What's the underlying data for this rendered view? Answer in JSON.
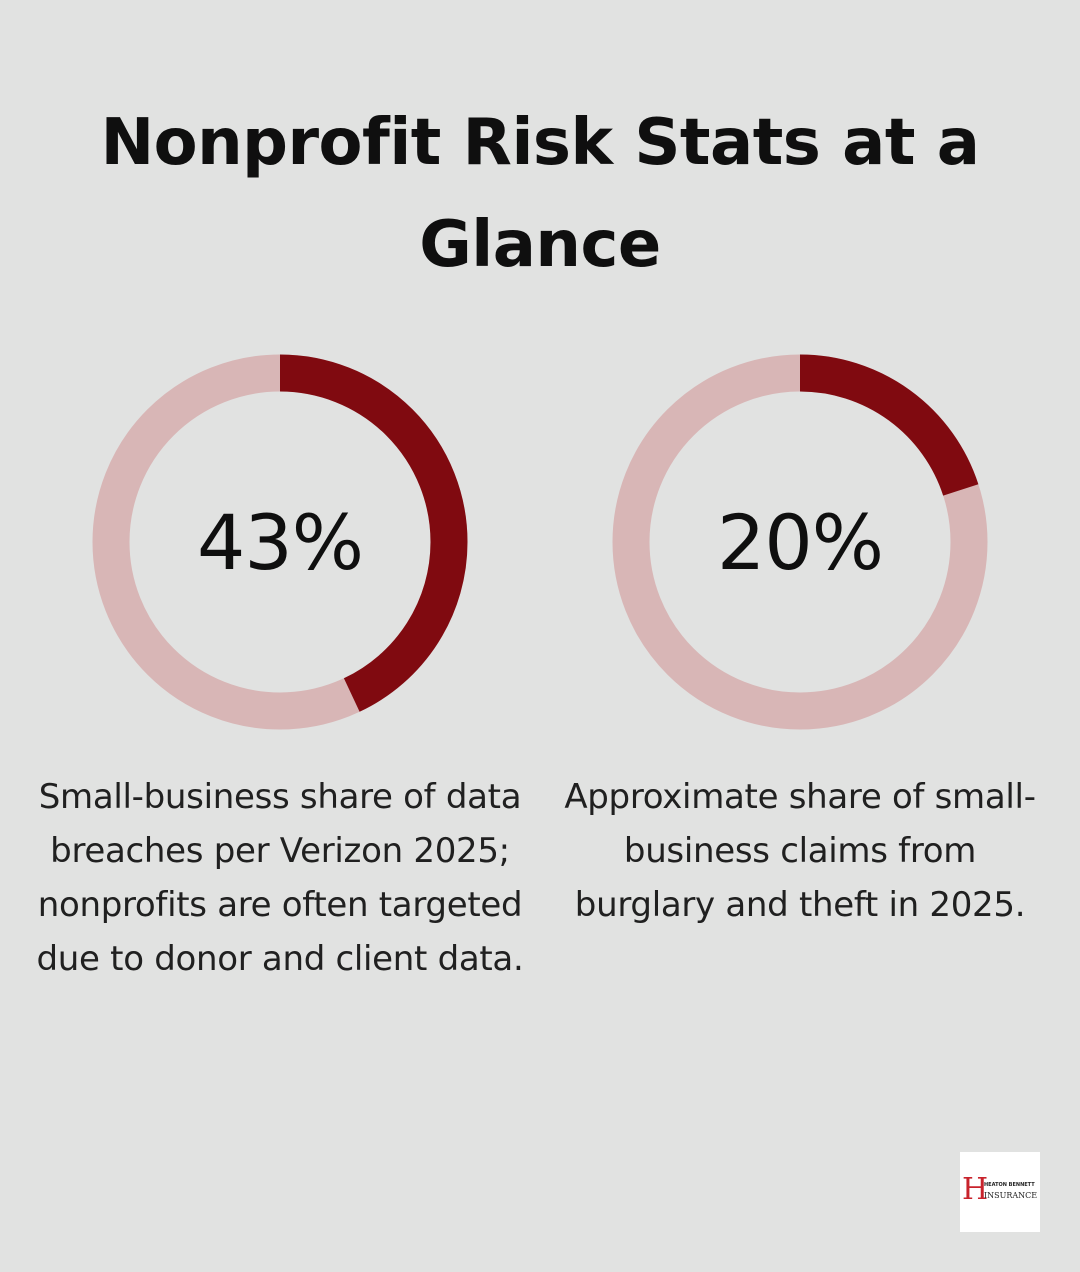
{
  "title": "Nonprofit Risk Stats at a Glance",
  "colors": {
    "background": "#e1e2e1",
    "accent": "#800a10",
    "track": "#d8b6b6",
    "logo_red": "#c8232c"
  },
  "chart_data": [
    {
      "type": "pie",
      "style": "donut",
      "value": 43,
      "max": 100,
      "label": "43%",
      "caption": "Small-business share of data breaches per Verizon 2025; nonprofits are often targeted due to donor and client data."
    },
    {
      "type": "pie",
      "style": "donut",
      "value": 20,
      "max": 100,
      "label": "20%",
      "caption": "Approximate share of small-business claims from burglary and theft in 2025."
    }
  ],
  "logo": {
    "letter": "H",
    "line1": "HEATON BENNETT",
    "line2": "INSURANCE"
  }
}
